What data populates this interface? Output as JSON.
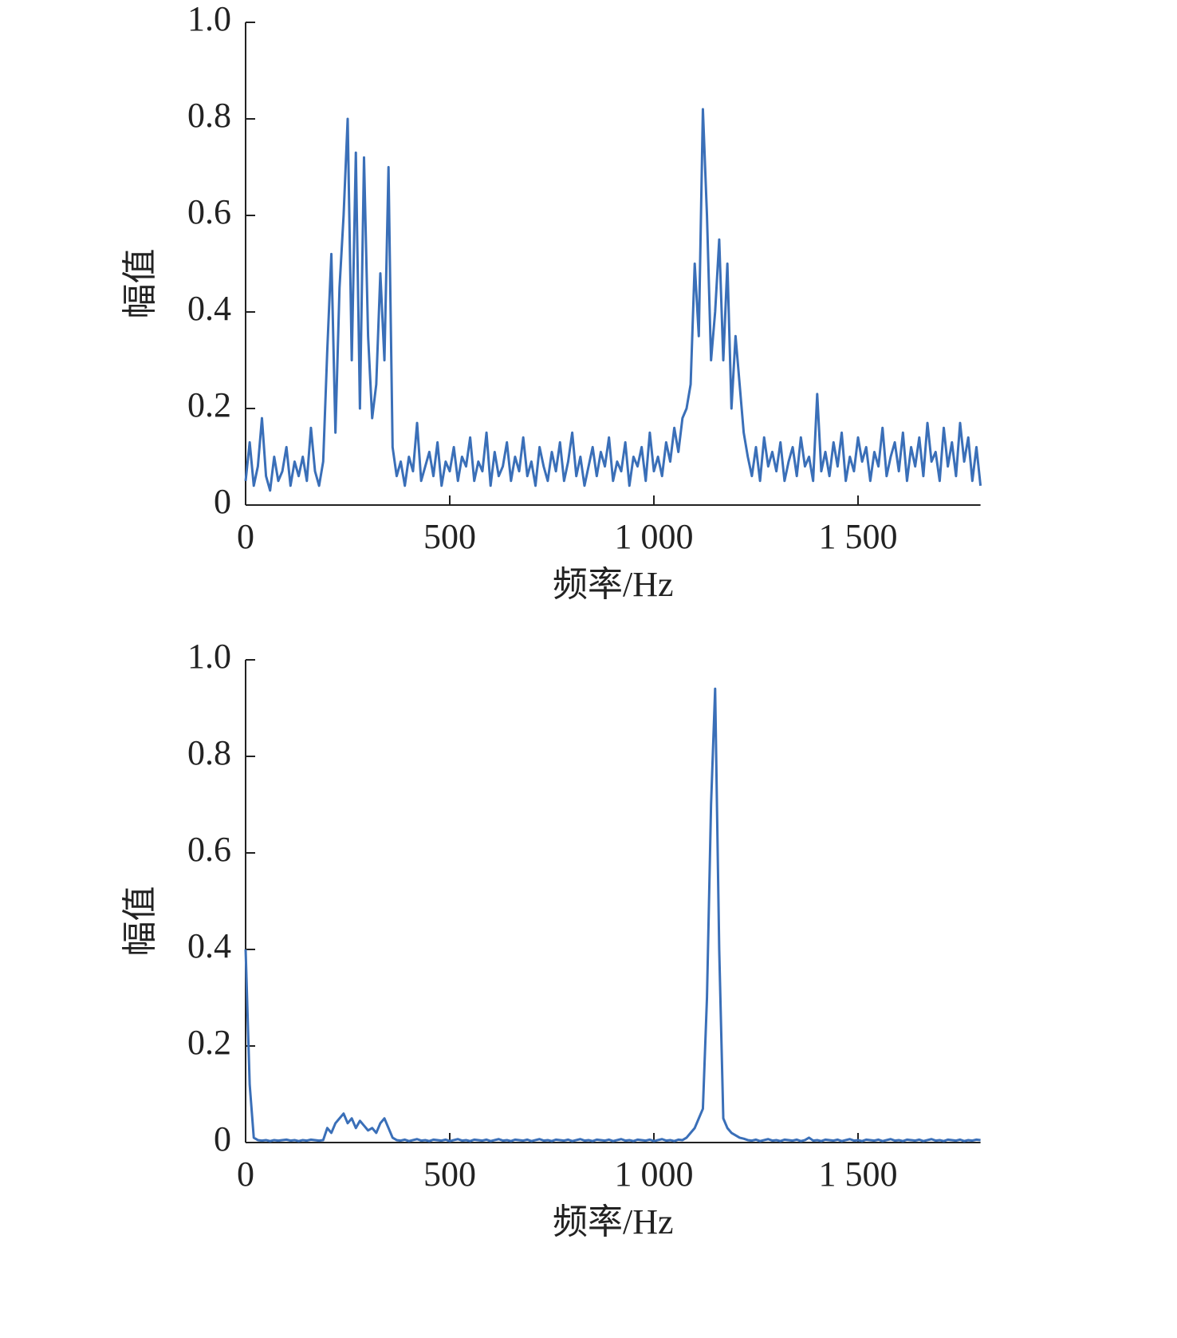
{
  "chart_data": [
    {
      "type": "line",
      "xlabel": "频率/Hz",
      "ylabel": "幅值",
      "xlim": [
        0,
        1800
      ],
      "ylim": [
        0,
        1
      ],
      "xticks": [
        0,
        500,
        {
          "value": 1000,
          "label": "1 000"
        },
        {
          "value": 1500,
          "label": "1 500"
        }
      ],
      "yticks": [
        0,
        0.2,
        0.4,
        0.6,
        0.8,
        {
          "value": 1,
          "label": "1.0"
        }
      ],
      "series": [
        {
          "color": "#3a6fb8",
          "x": [
            0,
            10,
            20,
            30,
            40,
            50,
            60,
            70,
            80,
            90,
            100,
            110,
            120,
            130,
            140,
            150,
            160,
            170,
            180,
            190,
            200,
            210,
            220,
            230,
            240,
            250,
            260,
            270,
            280,
            290,
            300,
            310,
            320,
            330,
            340,
            350,
            360,
            370,
            380,
            390,
            400,
            410,
            420,
            430,
            440,
            450,
            460,
            470,
            480,
            490,
            500,
            510,
            520,
            530,
            540,
            550,
            560,
            570,
            580,
            590,
            600,
            610,
            620,
            630,
            640,
            650,
            660,
            670,
            680,
            690,
            700,
            710,
            720,
            730,
            740,
            750,
            760,
            770,
            780,
            790,
            800,
            810,
            820,
            830,
            840,
            850,
            860,
            870,
            880,
            890,
            900,
            910,
            920,
            930,
            940,
            950,
            960,
            970,
            980,
            990,
            1000,
            1010,
            1020,
            1030,
            1040,
            1050,
            1060,
            1070,
            1080,
            1090,
            1100,
            1110,
            1120,
            1130,
            1140,
            1150,
            1160,
            1170,
            1180,
            1190,
            1200,
            1210,
            1220,
            1230,
            1240,
            1250,
            1260,
            1270,
            1280,
            1290,
            1300,
            1310,
            1320,
            1330,
            1340,
            1350,
            1360,
            1370,
            1380,
            1390,
            1400,
            1410,
            1420,
            1430,
            1440,
            1450,
            1460,
            1470,
            1480,
            1490,
            1500,
            1510,
            1520,
            1530,
            1540,
            1550,
            1560,
            1570,
            1580,
            1590,
            1600,
            1610,
            1620,
            1630,
            1640,
            1650,
            1660,
            1670,
            1680,
            1690,
            1700,
            1710,
            1720,
            1730,
            1740,
            1750,
            1760,
            1770,
            1780,
            1790,
            1800
          ],
          "values": [
            0.05,
            0.13,
            0.04,
            0.08,
            0.18,
            0.06,
            0.03,
            0.1,
            0.05,
            0.07,
            0.12,
            0.04,
            0.09,
            0.06,
            0.1,
            0.05,
            0.16,
            0.07,
            0.04,
            0.09,
            0.32,
            0.52,
            0.15,
            0.45,
            0.6,
            0.8,
            0.3,
            0.73,
            0.2,
            0.72,
            0.35,
            0.18,
            0.25,
            0.48,
            0.3,
            0.7,
            0.12,
            0.06,
            0.09,
            0.04,
            0.1,
            0.07,
            0.17,
            0.05,
            0.08,
            0.11,
            0.06,
            0.13,
            0.04,
            0.09,
            0.07,
            0.12,
            0.05,
            0.1,
            0.08,
            0.14,
            0.05,
            0.09,
            0.07,
            0.15,
            0.04,
            0.11,
            0.06,
            0.08,
            0.13,
            0.05,
            0.1,
            0.07,
            0.14,
            0.06,
            0.09,
            0.04,
            0.12,
            0.08,
            0.05,
            0.11,
            0.07,
            0.13,
            0.05,
            0.09,
            0.15,
            0.06,
            0.1,
            0.04,
            0.08,
            0.12,
            0.06,
            0.11,
            0.08,
            0.14,
            0.05,
            0.09,
            0.07,
            0.13,
            0.04,
            0.1,
            0.08,
            0.12,
            0.05,
            0.15,
            0.07,
            0.1,
            0.06,
            0.13,
            0.09,
            0.16,
            0.11,
            0.18,
            0.2,
            0.25,
            0.5,
            0.35,
            0.82,
            0.6,
            0.3,
            0.4,
            0.55,
            0.3,
            0.5,
            0.2,
            0.35,
            0.25,
            0.15,
            0.1,
            0.06,
            0.12,
            0.05,
            0.14,
            0.08,
            0.11,
            0.07,
            0.13,
            0.05,
            0.09,
            0.12,
            0.06,
            0.14,
            0.08,
            0.1,
            0.05,
            0.23,
            0.07,
            0.11,
            0.06,
            0.13,
            0.08,
            0.15,
            0.05,
            0.1,
            0.07,
            0.14,
            0.09,
            0.12,
            0.05,
            0.11,
            0.08,
            0.16,
            0.06,
            0.1,
            0.13,
            0.07,
            0.15,
            0.05,
            0.12,
            0.08,
            0.14,
            0.06,
            0.17,
            0.09,
            0.11,
            0.05,
            0.16,
            0.08,
            0.13,
            0.06,
            0.17,
            0.09,
            0.14,
            0.05,
            0.12,
            0.04
          ]
        }
      ]
    },
    {
      "type": "line",
      "xlabel": "频率/Hz",
      "ylabel": "幅值",
      "xlim": [
        0,
        1800
      ],
      "ylim": [
        0,
        1
      ],
      "xticks": [
        0,
        500,
        {
          "value": 1000,
          "label": "1 000"
        },
        {
          "value": 1500,
          "label": "1 500"
        }
      ],
      "yticks": [
        0,
        0.2,
        0.4,
        0.6,
        0.8,
        {
          "value": 1,
          "label": "1.0"
        }
      ],
      "series": [
        {
          "color": "#3a6fb8",
          "x": [
            0,
            10,
            20,
            30,
            40,
            50,
            60,
            70,
            80,
            90,
            100,
            110,
            120,
            130,
            140,
            150,
            160,
            170,
            180,
            190,
            200,
            210,
            220,
            230,
            240,
            250,
            260,
            270,
            280,
            290,
            300,
            310,
            320,
            330,
            340,
            350,
            360,
            370,
            380,
            390,
            400,
            410,
            420,
            430,
            440,
            450,
            460,
            470,
            480,
            490,
            500,
            510,
            520,
            530,
            540,
            550,
            560,
            570,
            580,
            590,
            600,
            610,
            620,
            630,
            640,
            650,
            660,
            670,
            680,
            690,
            700,
            710,
            720,
            730,
            740,
            750,
            760,
            770,
            780,
            790,
            800,
            810,
            820,
            830,
            840,
            850,
            860,
            870,
            880,
            890,
            900,
            910,
            920,
            930,
            940,
            950,
            960,
            970,
            980,
            990,
            1000,
            1010,
            1020,
            1030,
            1040,
            1050,
            1060,
            1070,
            1080,
            1090,
            1100,
            1110,
            1120,
            1130,
            1140,
            1150,
            1160,
            1170,
            1180,
            1190,
            1200,
            1210,
            1220,
            1230,
            1240,
            1250,
            1260,
            1270,
            1280,
            1290,
            1300,
            1310,
            1320,
            1330,
            1340,
            1350,
            1360,
            1370,
            1380,
            1390,
            1400,
            1410,
            1420,
            1430,
            1440,
            1450,
            1460,
            1470,
            1480,
            1490,
            1500,
            1510,
            1520,
            1530,
            1540,
            1550,
            1560,
            1570,
            1580,
            1590,
            1600,
            1610,
            1620,
            1630,
            1640,
            1650,
            1660,
            1670,
            1680,
            1690,
            1700,
            1710,
            1720,
            1730,
            1740,
            1750,
            1760,
            1770,
            1780,
            1790,
            1800
          ],
          "values": [
            0.4,
            0.12,
            0.01,
            0.005,
            0.004,
            0.005,
            0.003,
            0.005,
            0.004,
            0.005,
            0.006,
            0.004,
            0.005,
            0.003,
            0.005,
            0.004,
            0.006,
            0.005,
            0.004,
            0.005,
            0.03,
            0.02,
            0.04,
            0.05,
            0.06,
            0.04,
            0.05,
            0.03,
            0.045,
            0.035,
            0.025,
            0.03,
            0.02,
            0.04,
            0.05,
            0.03,
            0.01,
            0.005,
            0.004,
            0.006,
            0.003,
            0.005,
            0.007,
            0.004,
            0.005,
            0.003,
            0.006,
            0.005,
            0.004,
            0.006,
            0.003,
            0.005,
            0.007,
            0.004,
            0.005,
            0.003,
            0.006,
            0.005,
            0.004,
            0.006,
            0.003,
            0.005,
            0.007,
            0.004,
            0.005,
            0.003,
            0.006,
            0.005,
            0.004,
            0.006,
            0.003,
            0.005,
            0.007,
            0.004,
            0.005,
            0.003,
            0.006,
            0.005,
            0.004,
            0.006,
            0.003,
            0.005,
            0.007,
            0.004,
            0.005,
            0.003,
            0.006,
            0.005,
            0.004,
            0.006,
            0.003,
            0.005,
            0.007,
            0.004,
            0.005,
            0.003,
            0.006,
            0.005,
            0.004,
            0.006,
            0.003,
            0.005,
            0.007,
            0.004,
            0.005,
            0.003,
            0.006,
            0.005,
            0.01,
            0.02,
            0.03,
            0.05,
            0.07,
            0.3,
            0.7,
            0.94,
            0.4,
            0.05,
            0.03,
            0.02,
            0.015,
            0.01,
            0.008,
            0.005,
            0.004,
            0.006,
            0.003,
            0.005,
            0.007,
            0.004,
            0.005,
            0.003,
            0.006,
            0.005,
            0.004,
            0.006,
            0.003,
            0.005,
            0.01,
            0.004,
            0.005,
            0.003,
            0.006,
            0.005,
            0.004,
            0.006,
            0.003,
            0.005,
            0.007,
            0.004,
            0.005,
            0.003,
            0.006,
            0.005,
            0.004,
            0.006,
            0.003,
            0.005,
            0.007,
            0.004,
            0.005,
            0.003,
            0.006,
            0.005,
            0.004,
            0.006,
            0.003,
            0.005,
            0.007,
            0.004,
            0.005,
            0.003,
            0.006,
            0.005,
            0.004,
            0.006,
            0.003,
            0.005,
            0.004,
            0.006,
            0.005
          ]
        }
      ]
    }
  ]
}
